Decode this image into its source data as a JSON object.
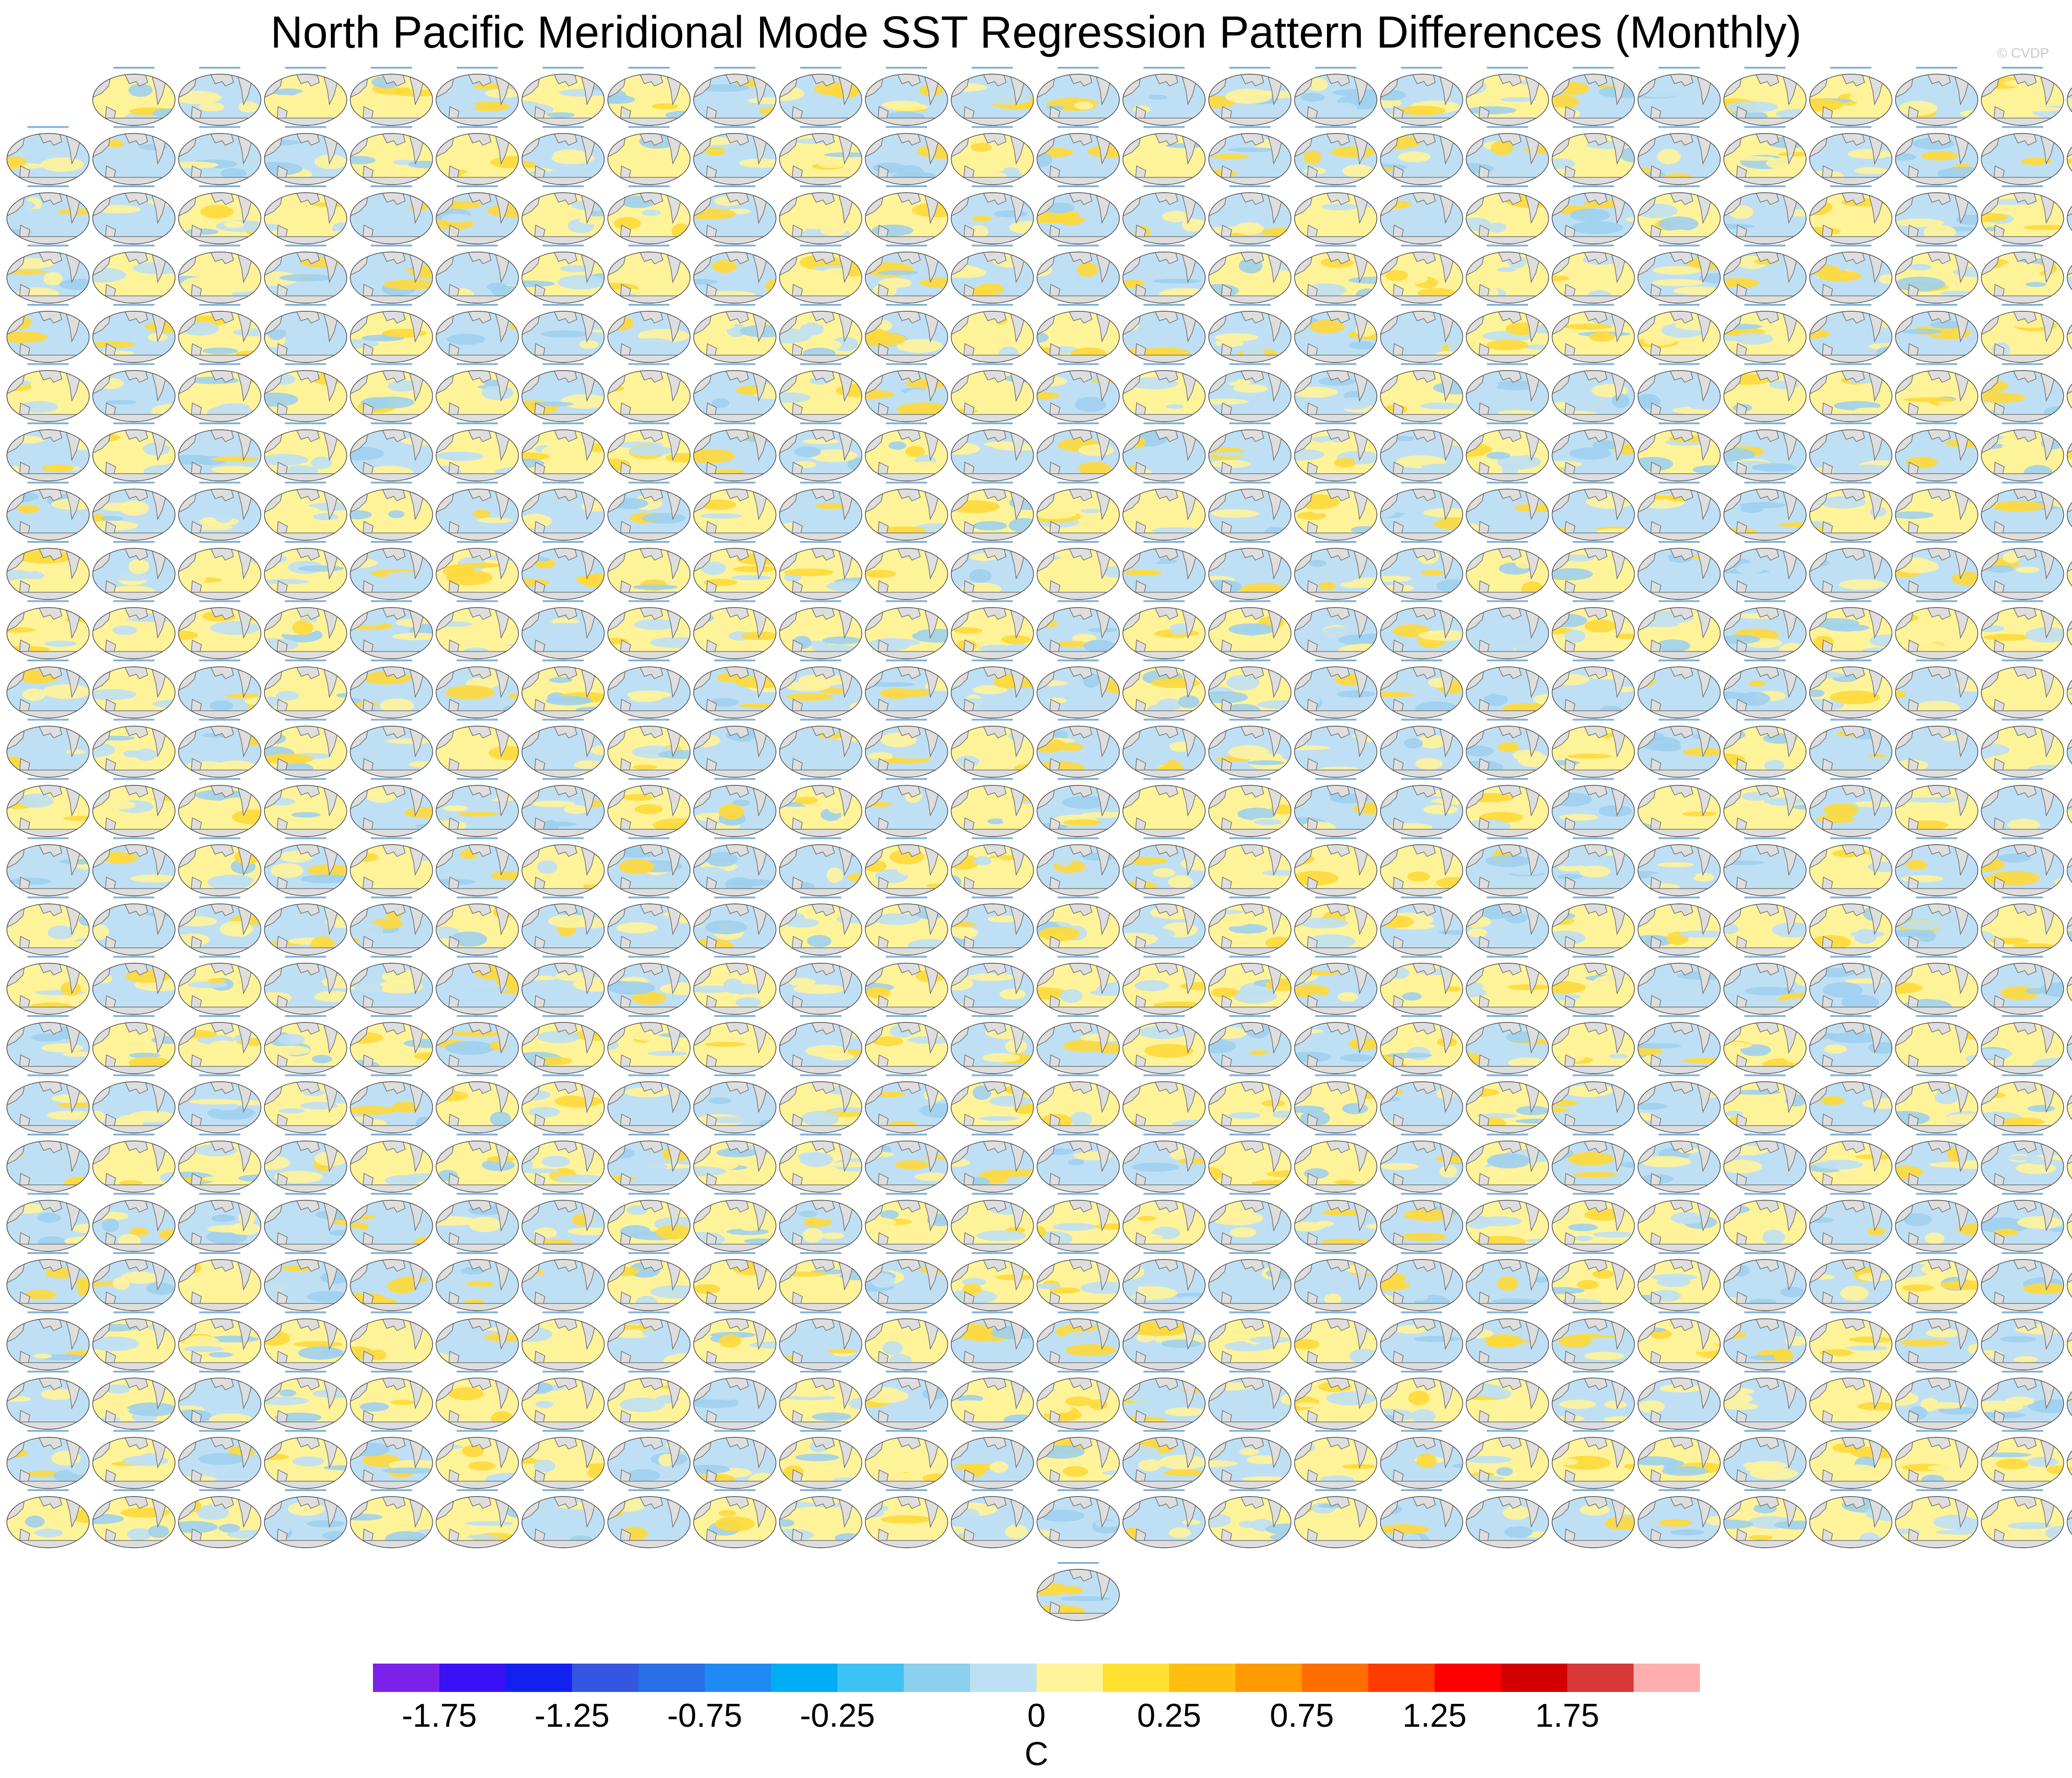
{
  "title": "North Pacific Meridional Mode SST Regression Pattern Differences (Monthly)",
  "credit": "© CVDP",
  "grid": {
    "row_counts": [
      24,
      25,
      25,
      25,
      25,
      25,
      25,
      25,
      25,
      25,
      25,
      25,
      25,
      25,
      25,
      25,
      25,
      25,
      25,
      25,
      25,
      25,
      25,
      25,
      25,
      1
    ],
    "first_row_offset_columns": 1,
    "last_row_column": 12
  },
  "panel_style": {
    "land": "#dedede",
    "ocean_cool": "#bfe0f4",
    "ocean_cool_strong": "#9fd0ee",
    "ocean_warm": "#fff39a",
    "ocean_warm_strong": "#ffd93a",
    "coastline": "#6f6f6f",
    "caption": "#4a90c8"
  },
  "colorbar": {
    "colors": [
      "#7b22e8",
      "#3a10f5",
      "#1420f0",
      "#3456e0",
      "#2a6ee8",
      "#1f8af2",
      "#00aef5",
      "#3ec2f5",
      "#8ccfee",
      "#bde0f4",
      "#fff49a",
      "#ffdf30",
      "#ffbe10",
      "#ff9a00",
      "#ff6e00",
      "#ff3c00",
      "#ff0000",
      "#d20000",
      "#d83838",
      "#ffaeae"
    ],
    "labels": [
      "-1.75",
      "-1.25",
      "-0.75",
      "-0.25",
      "0",
      "0.25",
      "0.75",
      "1.25",
      "1.75"
    ],
    "label_boundaries": [
      1,
      3,
      5,
      7,
      10,
      12,
      14,
      16,
      18
    ],
    "units": "C"
  }
}
